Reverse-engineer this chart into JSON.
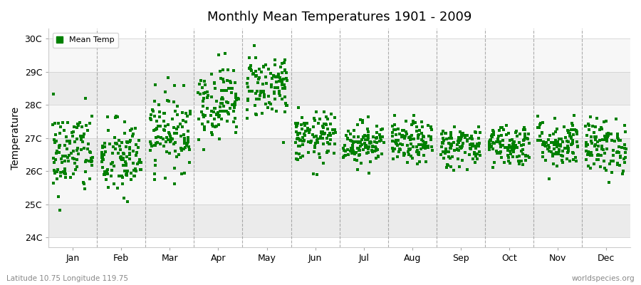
{
  "title": "Monthly Mean Temperatures 1901 - 2009",
  "ylabel": "Temperature",
  "xlabel_labels": [
    "Jan",
    "Feb",
    "Mar",
    "Apr",
    "May",
    "Jun",
    "Jul",
    "Aug",
    "Sep",
    "Oct",
    "Nov",
    "Dec"
  ],
  "ytick_labels": [
    "24C",
    "25C",
    "26C",
    "27C",
    "28C",
    "29C",
    "30C"
  ],
  "ytick_values": [
    24,
    25,
    26,
    27,
    28,
    29,
    30
  ],
  "ylim": [
    23.7,
    30.3
  ],
  "legend_label": "Mean Temp",
  "marker_color": "#008000",
  "marker": "s",
  "marker_size": 2.5,
  "bg_color": "#ffffff",
  "band_colors": [
    "#ebebeb",
    "#f7f7f7"
  ],
  "footnote_left": "Latitude 10.75 Longitude 119.75",
  "footnote_right": "worldspecies.org",
  "num_years": 109,
  "monthly_means": [
    26.55,
    26.35,
    27.2,
    28.1,
    28.6,
    27.0,
    26.85,
    26.85,
    26.75,
    26.8,
    26.85,
    26.75
  ],
  "monthly_stds": [
    0.65,
    0.6,
    0.58,
    0.55,
    0.5,
    0.38,
    0.32,
    0.32,
    0.32,
    0.32,
    0.38,
    0.42
  ],
  "seed": 42
}
